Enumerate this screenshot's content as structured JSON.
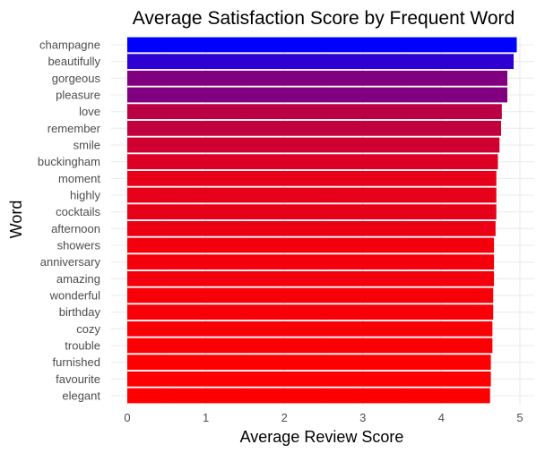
{
  "chart_data": {
    "type": "bar",
    "orientation": "horizontal",
    "title": "Average Satisfaction Score by Frequent Word",
    "xlabel": "Average Review Score",
    "ylabel": "Word",
    "xlim": [
      0,
      5
    ],
    "xticks": [
      "0",
      "1",
      "2",
      "3",
      "4",
      "5"
    ],
    "grid": true,
    "legend": "none",
    "color_low": "#ff0000",
    "color_high": "#0000ff",
    "color_mid": "#a6008f",
    "categories": [
      "champagne",
      "beautifully",
      "gorgeous",
      "pleasure",
      "love",
      "remember",
      "smile",
      "buckingham",
      "moment",
      "highly",
      "cocktails",
      "afternoon",
      "showers",
      "anniversary",
      "amazing",
      "wonderful",
      "birthday",
      "cozy",
      "trouble",
      "furnished",
      "favourite",
      "elegant"
    ],
    "values": [
      4.96,
      4.92,
      4.84,
      4.84,
      4.77,
      4.76,
      4.74,
      4.72,
      4.7,
      4.7,
      4.7,
      4.69,
      4.67,
      4.67,
      4.67,
      4.66,
      4.66,
      4.65,
      4.65,
      4.63,
      4.63,
      4.62
    ]
  }
}
